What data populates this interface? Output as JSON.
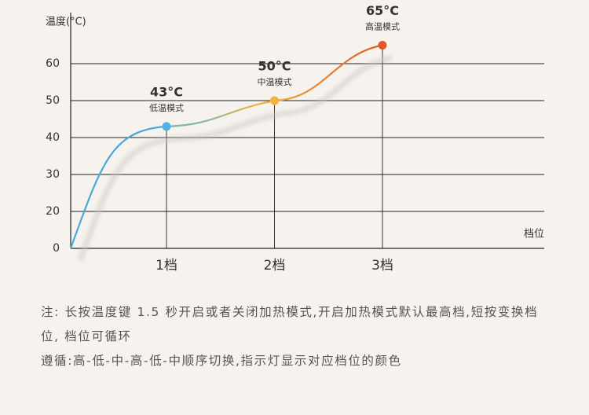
{
  "chart_data": {
    "type": "line",
    "y_label": "温度(°C)",
    "x_label": "档位",
    "categories": [
      "1档",
      "2档",
      "3档"
    ],
    "values": [
      43,
      50,
      65
    ],
    "value_labels": [
      "43°C",
      "50°C",
      "65°C"
    ],
    "annotations": [
      "低温模式",
      "中温模式",
      "高温模式"
    ],
    "colors": [
      "#4db3e4",
      "#f3b13d",
      "#e4572a"
    ],
    "ylim": [
      0,
      72
    ],
    "yticks": [
      0,
      20,
      30,
      40,
      50,
      60
    ],
    "grid": true
  },
  "notes": [
    "注: 长按温度键 1.5 秒开启或者关闭加热模式,开启加热模式默认最高档,短按变换档位, 档位可循环",
    "遵循:高-低-中-高-低-中顺序切换,指示灯显示对应档位的颜色"
  ]
}
